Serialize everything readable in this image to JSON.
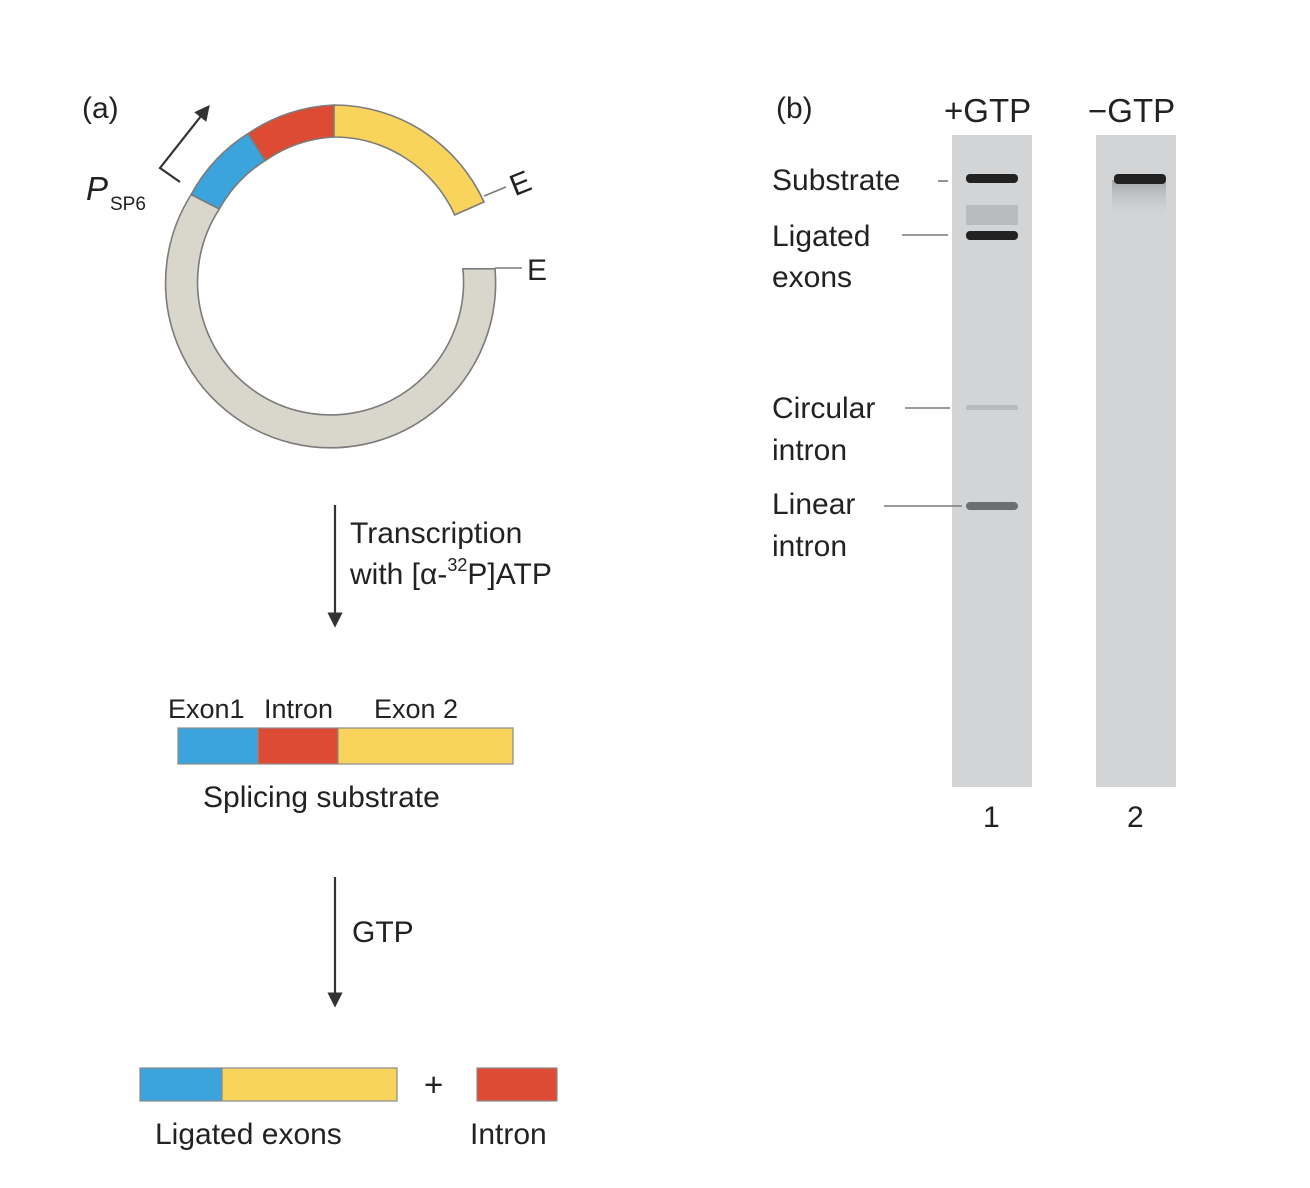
{
  "colors": {
    "exon1": "#3ba4dc",
    "intron": "#de4b35",
    "exon2": "#f8d45c",
    "plasmid": "#d9d7cc",
    "gel_lane": "#d3d4d6",
    "band": "#222222"
  },
  "panel_a": {
    "label": "(a)",
    "promoter": {
      "italic": "P",
      "sub": "SP6"
    },
    "end_label_1": "E",
    "end_label_2": "E",
    "step1": {
      "line1": "Transcription",
      "line2_pre": "with [",
      "line2_alpha": "α",
      "line2_dash": "-",
      "line2_sup": "32",
      "line2_post": "P]ATP"
    },
    "substrate": {
      "exon1_label": "Exon1",
      "intron_label": "Intron",
      "exon2_label": "Exon 2",
      "caption": "Splicing substrate"
    },
    "step2": "GTP",
    "products": {
      "plus": "+",
      "ligated_label": "Ligated exons",
      "intron_label": "Intron"
    }
  },
  "panel_b": {
    "label": "(b)",
    "lane_headers": [
      "+GTP",
      "−GTP"
    ],
    "lane_numbers": [
      "1",
      "2"
    ],
    "bands": {
      "substrate": "Substrate",
      "ligated_1": "Ligated",
      "ligated_2": "exons",
      "circular_1": "Circular",
      "circular_2": "intron",
      "linear_1": "Linear",
      "linear_2": "intron"
    }
  }
}
